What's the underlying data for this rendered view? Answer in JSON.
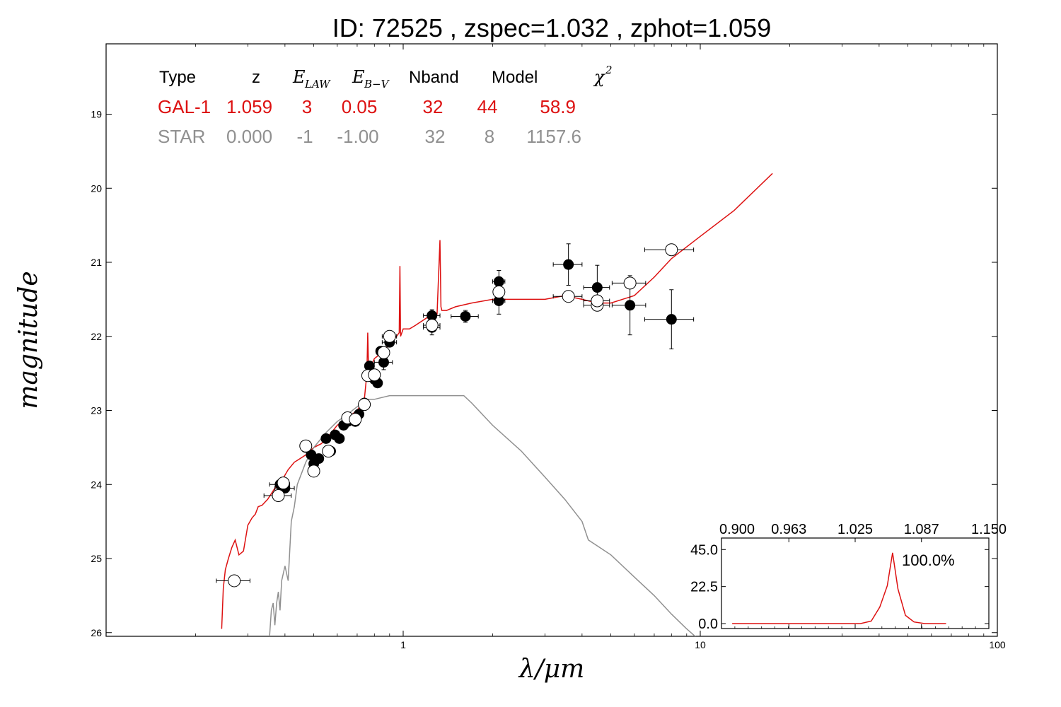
{
  "title": "ID:  72525 , zspec=1.032 , zphot=1.059",
  "colors": {
    "gal": "#dd1111",
    "star": "#909090",
    "axis": "#000000"
  },
  "table": {
    "headers": {
      "type": "Type",
      "z": "z",
      "elaw_main": "E",
      "elaw_sub": "LAW",
      "ebv_main": "E",
      "ebv_sub": "B−V",
      "nband": "Nband",
      "model": "Model",
      "chi2_main": "χ",
      "chi2_sup": "2"
    },
    "rows": [
      {
        "type": "GAL-1",
        "z": "1.059",
        "elaw": "3",
        "ebv": "0.05",
        "nband": "32",
        "model": "44",
        "chi2": "58.9"
      },
      {
        "type": "STAR",
        "z": "0.000",
        "elaw": "-1",
        "ebv": "-1.00",
        "nband": "32",
        "model": "8",
        "chi2": "1157.6"
      }
    ]
  },
  "chart_data": [
    {
      "type": "scatter",
      "title": "",
      "xlabel": "λ/μm",
      "ylabel": "magnitude",
      "xscale": "log",
      "xlim": [
        0.1,
        100
      ],
      "ylim": [
        26.05,
        18.05
      ],
      "yaxis_inverted": true,
      "x_tick_labels": [
        "1",
        "10",
        "100"
      ],
      "y_tick_labels": [
        "19",
        "20",
        "21",
        "22",
        "23",
        "24",
        "25",
        "26"
      ],
      "y_ticks": [
        19,
        20,
        21,
        22,
        23,
        24,
        25,
        26
      ],
      "series": [
        {
          "name": "GAL-1",
          "kind": "model_line",
          "color": "#dd1111",
          "x": [
            0.245,
            0.248,
            0.252,
            0.258,
            0.265,
            0.272,
            0.28,
            0.29,
            0.3,
            0.31,
            0.318,
            0.325,
            0.335,
            0.35,
            0.37,
            0.39,
            0.41,
            0.43,
            0.45,
            0.47,
            0.5,
            0.53,
            0.56,
            0.6,
            0.65,
            0.7,
            0.74,
            0.755,
            0.76,
            0.765,
            0.78,
            0.8,
            0.83,
            0.86,
            0.9,
            0.95,
            0.97,
            0.975,
            0.98,
            1.0,
            1.05,
            1.1,
            1.2,
            1.3,
            1.33,
            1.34,
            1.35,
            1.4,
            1.5,
            1.7,
            2.0,
            2.5,
            3.0,
            3.5,
            4.0,
            4.5,
            5.0,
            6.0,
            7.0,
            8.0,
            10.0,
            13.0,
            17.5
          ],
          "y": [
            25.95,
            25.4,
            25.15,
            25.0,
            24.85,
            24.75,
            24.95,
            24.9,
            24.55,
            24.45,
            24.4,
            24.3,
            24.28,
            24.2,
            24.05,
            23.95,
            23.8,
            23.7,
            23.65,
            23.6,
            23.5,
            23.45,
            23.35,
            23.2,
            23.1,
            23.0,
            22.85,
            22.5,
            21.95,
            22.45,
            22.4,
            22.3,
            22.25,
            22.2,
            22.1,
            22.0,
            21.95,
            21.05,
            22.0,
            21.9,
            21.9,
            21.85,
            21.75,
            21.7,
            20.7,
            21.6,
            21.65,
            21.65,
            21.6,
            21.55,
            21.5,
            21.5,
            21.5,
            21.45,
            21.5,
            21.55,
            21.55,
            21.45,
            21.2,
            20.95,
            20.65,
            20.3,
            19.8
          ]
        },
        {
          "name": "STAR",
          "kind": "model_line",
          "color": "#909090",
          "x": [
            0.355,
            0.36,
            0.365,
            0.37,
            0.375,
            0.38,
            0.385,
            0.39,
            0.4,
            0.41,
            0.42,
            0.43,
            0.44,
            0.45,
            0.47,
            0.5,
            0.55,
            0.6,
            0.65,
            0.7,
            0.75,
            0.8,
            0.9,
            1.0,
            1.2,
            1.4,
            1.6,
            1.7,
            2.0,
            2.5,
            3.0,
            3.5,
            4.0,
            4.2,
            5.0,
            6.0,
            7.0,
            8.0,
            9.0,
            9.8
          ],
          "y": [
            26.05,
            25.7,
            25.6,
            25.9,
            25.6,
            25.45,
            25.7,
            25.3,
            25.1,
            25.3,
            24.5,
            24.3,
            24.0,
            23.9,
            23.7,
            23.5,
            23.3,
            23.15,
            23.05,
            22.95,
            22.85,
            22.85,
            22.8,
            22.8,
            22.8,
            22.8,
            22.8,
            22.9,
            23.2,
            23.55,
            23.9,
            24.2,
            24.5,
            24.75,
            24.95,
            25.25,
            25.5,
            25.75,
            25.95,
            26.08
          ]
        },
        {
          "name": "observed",
          "kind": "filled_points",
          "color": "#000000",
          "x": [
            0.385,
            0.4,
            0.47,
            0.49,
            0.5,
            0.52,
            0.55,
            0.57,
            0.59,
            0.61,
            0.63,
            0.65,
            0.67,
            0.69,
            0.71,
            0.74,
            0.77,
            0.8,
            0.82,
            0.84,
            0.86,
            0.9,
            1.25,
            1.25,
            1.62,
            2.1,
            2.1,
            3.6,
            4.5,
            5.8,
            8.0
          ],
          "y": [
            24.0,
            24.05,
            23.5,
            23.6,
            23.72,
            23.65,
            23.38,
            23.55,
            23.33,
            23.38,
            23.2,
            23.15,
            23.12,
            23.15,
            23.05,
            22.9,
            22.4,
            22.58,
            22.63,
            22.2,
            22.35,
            22.08,
            21.72,
            21.88,
            21.73,
            21.26,
            21.52,
            21.03,
            21.34,
            21.58,
            21.77
          ],
          "yerr": [
            0.05,
            0.05,
            0.05,
            0.05,
            0.05,
            0.05,
            0.05,
            0.05,
            0.05,
            0.05,
            0.05,
            0.05,
            0.05,
            0.05,
            0.05,
            0.05,
            0.05,
            0.05,
            0.05,
            0.05,
            0.1,
            0.05,
            0.08,
            0.1,
            0.08,
            0.15,
            0.18,
            0.28,
            0.3,
            0.4,
            0.4
          ],
          "xerr": [
            0.03,
            0.03,
            0.0,
            0.0,
            0.0,
            0.0,
            0.0,
            0.0,
            0.0,
            0.0,
            0.0,
            0.0,
            0.0,
            0.0,
            0.0,
            0.0,
            0.0,
            0.0,
            0.0,
            0.03,
            0.06,
            0.05,
            0.08,
            0.08,
            0.17,
            0.1,
            0.1,
            0.4,
            0.45,
            0.75,
            1.5
          ]
        },
        {
          "name": "model_bands",
          "kind": "open_points",
          "color": "#000000",
          "x": [
            0.27,
            0.38,
            0.395,
            0.47,
            0.5,
            0.56,
            0.65,
            0.69,
            0.74,
            0.76,
            0.8,
            0.86,
            0.9,
            1.25,
            2.1,
            3.6,
            4.5,
            4.5,
            5.8,
            8.0
          ],
          "y": [
            25.3,
            24.15,
            23.98,
            23.48,
            23.82,
            23.55,
            23.1,
            23.12,
            22.92,
            22.53,
            22.52,
            22.22,
            22.0,
            21.85,
            21.4,
            21.46,
            21.58,
            21.52,
            21.28,
            20.83
          ],
          "xerr": [
            0.035,
            0.04,
            0.0,
            0.0,
            0.0,
            0.0,
            0.0,
            0.0,
            0.0,
            0.0,
            0.0,
            0.0,
            0.05,
            0.08,
            0.0,
            0.4,
            0.45,
            0.45,
            0.75,
            1.5
          ]
        }
      ]
    },
    {
      "type": "line",
      "title": "",
      "xlabel": "",
      "ylabel": "",
      "xlim": [
        0.9,
        1.15
      ],
      "ylim": [
        -3,
        52
      ],
      "x_tick_labels": [
        "0.900",
        "0.963",
        "1.025",
        "1.087",
        "1.150"
      ],
      "y_tick_labels": [
        "45.0",
        "22.5",
        "0.0"
      ],
      "y_ticks": [
        45,
        22.5,
        0
      ],
      "annotation": "100.0%",
      "series": [
        {
          "name": "PDF",
          "color": "#dd1111",
          "x": [
            0.91,
            0.94,
            0.97,
            1.0,
            1.03,
            1.04,
            1.048,
            1.055,
            1.06,
            1.065,
            1.072,
            1.08,
            1.09,
            1.11
          ],
          "y": [
            0,
            0,
            0,
            0,
            0,
            1.5,
            10,
            23,
            43,
            21,
            5,
            1,
            0,
            0
          ]
        }
      ]
    }
  ]
}
